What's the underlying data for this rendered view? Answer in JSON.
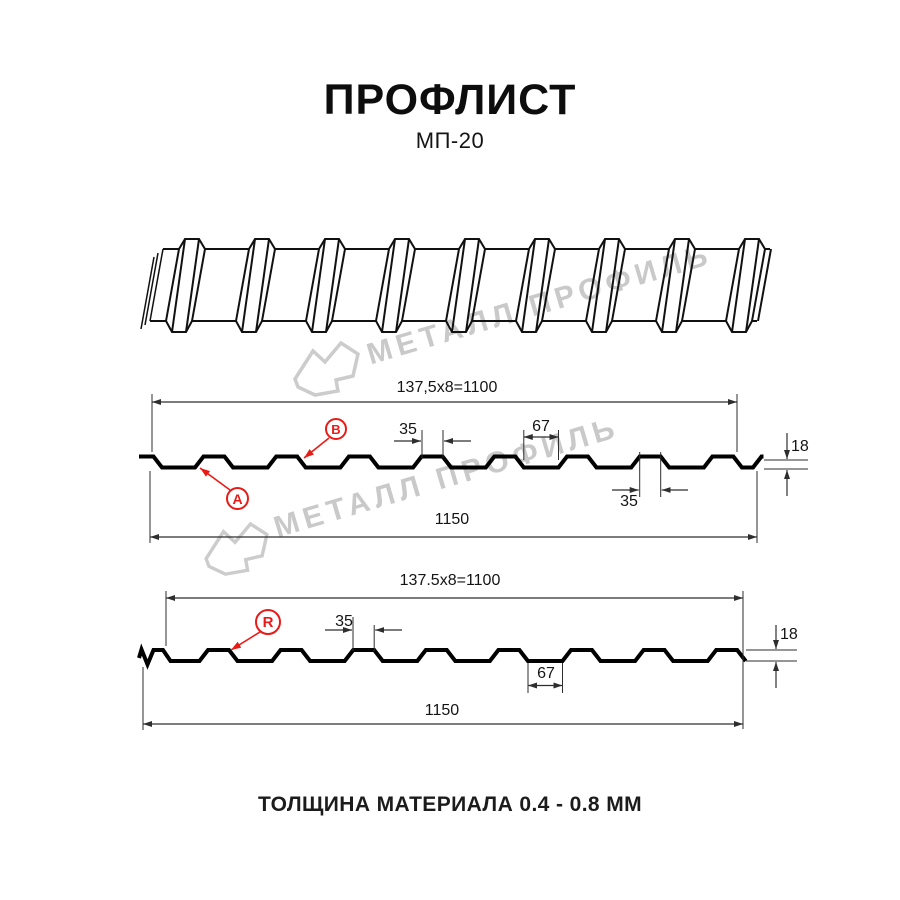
{
  "header": {
    "title": "ПРОФЛИСТ",
    "subtitle": "МП-20"
  },
  "watermark": {
    "text": "МЕТАЛЛ ПРОФИЛЬ"
  },
  "diagram1": {
    "dim_pitch": "137,5x8=1100",
    "dim_top_rib": "35",
    "dim_valley": "67",
    "dim_height": "18",
    "dim_bottom_rib": "35",
    "dim_total": "1150",
    "callout_a": "A",
    "callout_b": "B"
  },
  "diagram2": {
    "dim_pitch": "137.5x8=1100",
    "dim_rib": "35",
    "dim_height": "18",
    "dim_valley": "67",
    "dim_total": "1150",
    "callout_r": "R"
  },
  "footer": {
    "caption": "ТОЛЩИНА МАТЕРИАЛА 0.4 - 0.8 ММ"
  },
  "colors": {
    "accent_red": "#e81b17",
    "watermark_gray": "#c9c9c9",
    "line_black": "#000000",
    "dim_line": "#2e2e2e"
  }
}
